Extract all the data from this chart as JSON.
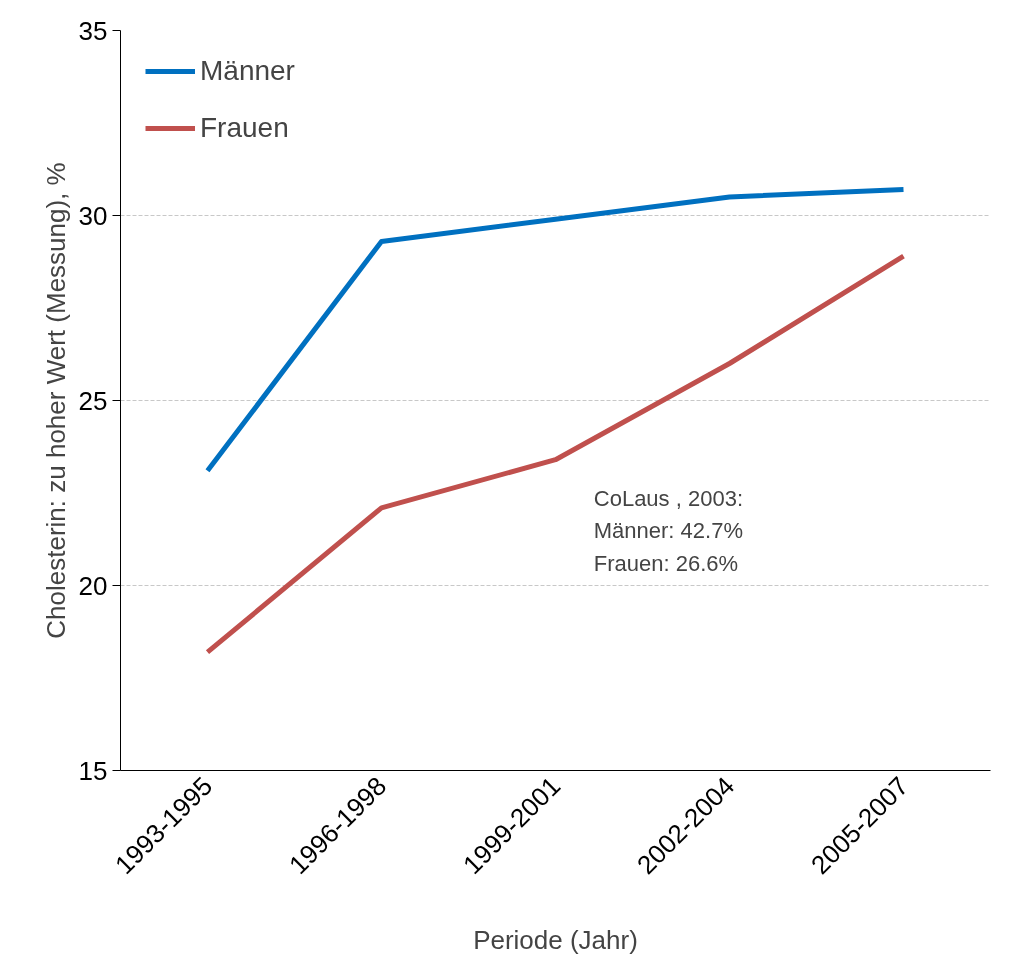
{
  "chart_data": {
    "type": "line",
    "xlabel": "Periode (Jahr)",
    "ylabel": "Cholesterin: zu hoher Wert (Messung), %",
    "categories": [
      "1993-1995",
      "1996-1998",
      "1999-2001",
      "2002-2004",
      "2005-2007"
    ],
    "series": [
      {
        "name": "Männer",
        "color": "#0070c0",
        "values": [
          23.1,
          29.3,
          29.9,
          30.5,
          30.7
        ]
      },
      {
        "name": "Frauen",
        "color": "#c0504d",
        "values": [
          18.2,
          22.1,
          23.4,
          26.0,
          28.9
        ]
      }
    ],
    "ylim": [
      15,
      35
    ],
    "yticks": [
      15,
      20,
      25,
      30,
      35
    ],
    "grid": "y",
    "legend": "top left",
    "marker": "none",
    "line_style": "solid",
    "annotations": [
      "CoLaus , 2003:\nMänner: 42.7%\nFrauen: 26.6%"
    ]
  }
}
